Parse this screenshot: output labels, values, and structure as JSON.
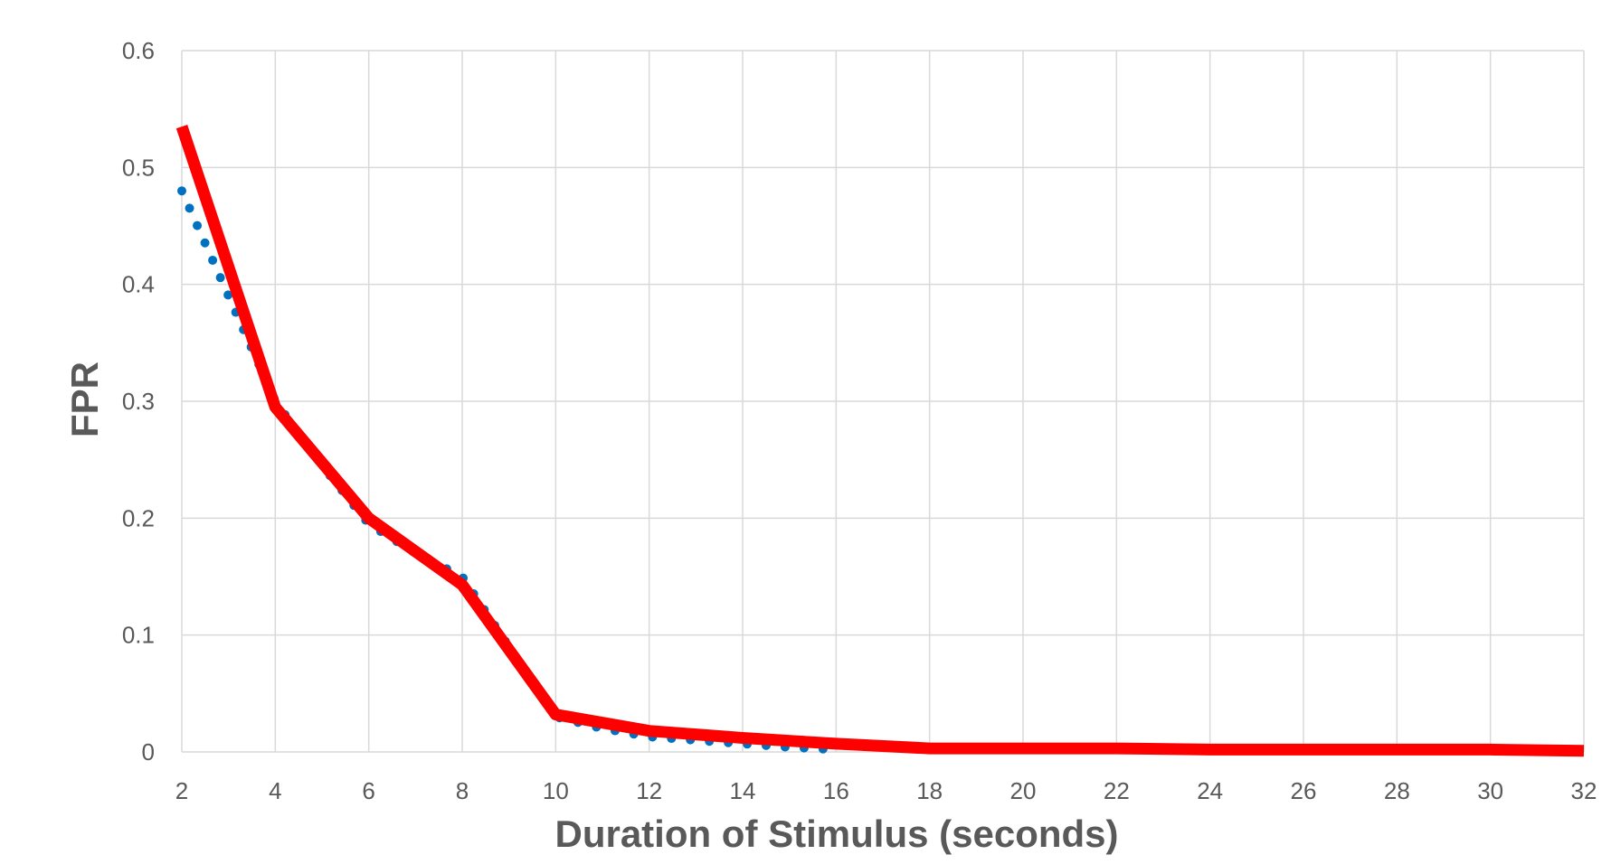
{
  "chart_data": {
    "type": "line",
    "title": "",
    "xlabel": "Duration of Stimulus (seconds)",
    "ylabel": "FPR",
    "xlim": [
      2,
      32
    ],
    "ylim": [
      0,
      0.6
    ],
    "x_ticks": [
      "2",
      "4",
      "6",
      "8",
      "10",
      "12",
      "14",
      "16",
      "18",
      "20",
      "22",
      "24",
      "26",
      "28",
      "30",
      "32"
    ],
    "y_ticks": [
      "0",
      "0.1",
      "0.2",
      "0.3",
      "0.4",
      "0.5",
      "0.6"
    ],
    "grid": true,
    "legend": "none",
    "series": [
      {
        "style": "solid",
        "color": "#ff0000",
        "x": [
          2,
          4,
          6,
          8,
          10,
          12,
          14,
          16,
          18,
          20,
          22,
          24,
          26,
          28,
          30,
          32
        ],
        "y": [
          0.535,
          0.295,
          0.2,
          0.143,
          0.032,
          0.018,
          0.012,
          0.007,
          0.003,
          0.003,
          0.003,
          0.002,
          0.002,
          0.002,
          0.002,
          0.001
        ]
      },
      {
        "style": "dotted",
        "color": "#0070c0",
        "x": [
          2,
          3,
          4,
          5,
          6,
          7,
          8,
          9,
          10,
          11,
          12,
          13,
          14,
          15,
          16
        ],
        "y": [
          0.48,
          0.39,
          0.3,
          0.245,
          0.195,
          0.17,
          0.15,
          0.09,
          0.03,
          0.02,
          0.013,
          0.01,
          0.007,
          0.004,
          0.002
        ]
      }
    ]
  }
}
